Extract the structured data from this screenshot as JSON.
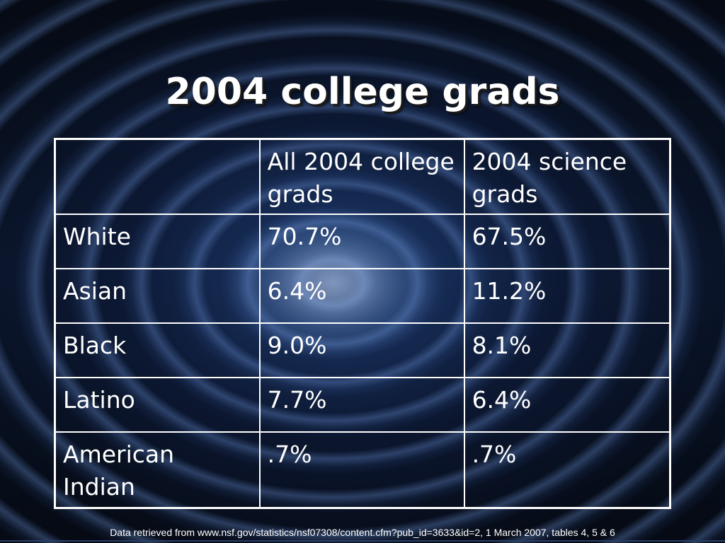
{
  "slide": {
    "title": "2004 college grads",
    "footnote": "Data retrieved from www.nsf.gov/statistics/nsf07308/content.cfm?pub_id=3633&id=2, 1 March 2007, tables 4, 5 & 6"
  },
  "table": {
    "headers": [
      "",
      "All 2004 college grads",
      "2004 science grads"
    ],
    "rows": [
      {
        "group": "White",
        "all_grads": "70.7%",
        "science_grads": "67.5%"
      },
      {
        "group": "Asian",
        "all_grads": "6.4%",
        "science_grads": "11.2%"
      },
      {
        "group": "Black",
        "all_grads": "9.0%",
        "science_grads": "8.1%"
      },
      {
        "group": "Latino",
        "all_grads": "7.7%",
        "science_grads": "6.4%"
      },
      {
        "group": "American Indian",
        "all_grads": ".7%",
        "science_grads": ".7%"
      }
    ]
  }
}
